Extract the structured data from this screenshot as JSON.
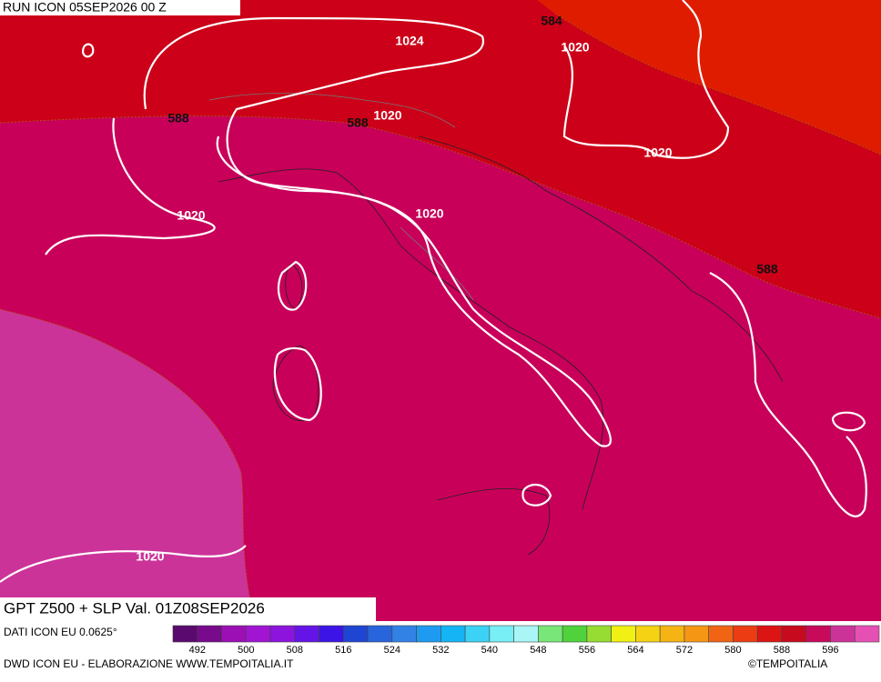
{
  "header": {
    "run": "RUN ICON 05SEP2026 00 Z"
  },
  "map": {
    "contour_labels": [
      "584",
      "1024",
      "1020",
      "588",
      "588",
      "1020",
      "1020",
      "1020",
      "1020",
      "588",
      "1020"
    ]
  },
  "footer": {
    "title": "GPT Z500 + SLP Val. 01Z08SEP2026",
    "source": "DATI ICON EU 0.0625°",
    "credit": "DWD ICON EU - ELABORAZIONE WWW.TEMPOITALIA.IT",
    "copyright": "©TEMPOITALIA"
  },
  "colorbar": {
    "colors": [
      "#5a0a6e",
      "#780a8c",
      "#9b0fb4",
      "#a014d2",
      "#8c14dc",
      "#6414e6",
      "#3c14e6",
      "#1e46d2",
      "#2864dc",
      "#3282e6",
      "#1e9bf0",
      "#14b4f5",
      "#3cd2f5",
      "#78eef5",
      "#aaf5f5",
      "#78e678",
      "#50d23c",
      "#96dc32",
      "#f0f014",
      "#f5d214",
      "#f5b414",
      "#f59614",
      "#f06414",
      "#eb3c14",
      "#dc1414",
      "#c80a1e",
      "#c80a5a",
      "#cc3399",
      "#e650b4"
    ],
    "labels": [
      492,
      500,
      508,
      516,
      524,
      532,
      540,
      548,
      556,
      564,
      572,
      580,
      588,
      596
    ]
  }
}
